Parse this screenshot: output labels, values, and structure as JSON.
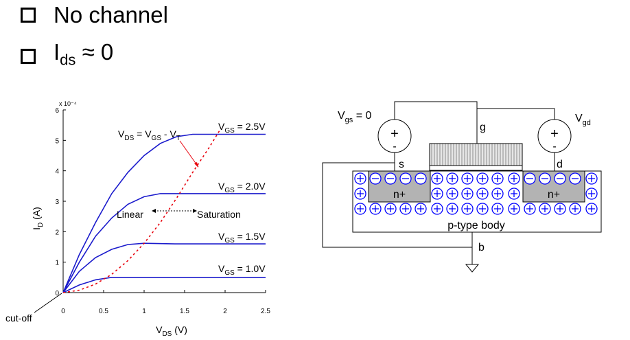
{
  "bullets": [
    {
      "text": "No channel"
    },
    {
      "main": "I",
      "sub": "ds",
      "rest": " ≈ 0"
    }
  ],
  "chart_data": {
    "type": "line",
    "title": "",
    "xlabel": "V_DS (V)",
    "ylabel": "I_D (A)",
    "y_exponent_label": "x 10⁻⁴",
    "xlim": [
      0,
      2.5
    ],
    "ylim": [
      0,
      6
    ],
    "xticks": [
      "0",
      "0.5",
      "1",
      "1.5",
      "2",
      "2.5"
    ],
    "yticks": [
      "0",
      "1",
      "2",
      "3",
      "4",
      "5",
      "6"
    ],
    "grid": false,
    "series": [
      {
        "name": "V_GS = 2.5V",
        "points": [
          [
            0,
            0
          ],
          [
            0.2,
            1.25
          ],
          [
            0.4,
            2.3
          ],
          [
            0.6,
            3.25
          ],
          [
            0.8,
            3.95
          ],
          [
            1.0,
            4.5
          ],
          [
            1.2,
            4.9
          ],
          [
            1.4,
            5.12
          ],
          [
            1.6,
            5.2
          ],
          [
            1.8,
            5.2
          ],
          [
            2.0,
            5.2
          ],
          [
            2.5,
            5.2
          ]
        ]
      },
      {
        "name": "V_GS = 2.0V",
        "points": [
          [
            0,
            0
          ],
          [
            0.2,
            1.0
          ],
          [
            0.4,
            1.85
          ],
          [
            0.6,
            2.45
          ],
          [
            0.8,
            2.9
          ],
          [
            1.0,
            3.15
          ],
          [
            1.2,
            3.25
          ],
          [
            1.4,
            3.25
          ],
          [
            2.5,
            3.25
          ]
        ]
      },
      {
        "name": "V_GS = 1.5V",
        "points": [
          [
            0,
            0
          ],
          [
            0.2,
            0.7
          ],
          [
            0.4,
            1.15
          ],
          [
            0.6,
            1.42
          ],
          [
            0.8,
            1.58
          ],
          [
            1.0,
            1.62
          ],
          [
            1.4,
            1.6
          ],
          [
            2.5,
            1.6
          ]
        ]
      },
      {
        "name": "V_GS = 1.0V",
        "points": [
          [
            0,
            0
          ],
          [
            0.2,
            0.25
          ],
          [
            0.4,
            0.42
          ],
          [
            0.6,
            0.5
          ],
          [
            0.8,
            0.5
          ],
          [
            2.5,
            0.5
          ]
        ]
      }
    ],
    "boundary": {
      "name": "V_DS = V_GS - V_T",
      "points": [
        [
          0,
          0
        ],
        [
          0.2,
          0.08
        ],
        [
          0.4,
          0.28
        ],
        [
          0.6,
          0.6
        ],
        [
          0.8,
          1.05
        ],
        [
          1.0,
          1.62
        ],
        [
          1.2,
          2.3
        ],
        [
          1.4,
          3.1
        ],
        [
          1.6,
          3.95
        ],
        [
          1.8,
          4.75
        ],
        [
          1.95,
          5.4
        ]
      ]
    },
    "annotations": {
      "linear": "Linear",
      "saturation": "Saturation",
      "cutoff": "cut-off"
    }
  },
  "diagram": {
    "vgs_label": "V",
    "vgs_sub": "gs",
    "vgs_rest": " = 0",
    "vgd_label": "V",
    "vgd_sub": "gd",
    "plus": "+",
    "minus": "-",
    "g": "g",
    "s": "s",
    "d": "d",
    "b": "b",
    "nplus": "n+",
    "body": "p-type body"
  }
}
